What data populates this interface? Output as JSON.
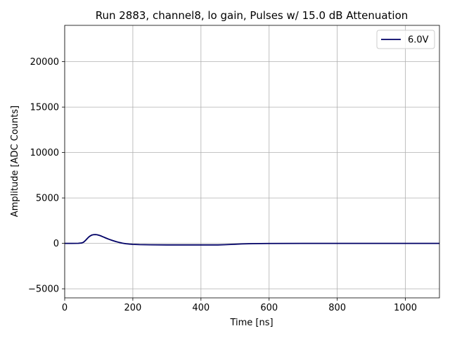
{
  "chart_data": {
    "type": "line",
    "title": "Run 2883, channel8, lo gain, Pulses w/ 15.0 dB Attenuation",
    "xlabel": "Time [ns]",
    "ylabel": "Amplitude [ADC Counts]",
    "xlim": [
      0,
      1100
    ],
    "ylim": [
      -6000,
      24000
    ],
    "xticks": [
      0,
      200,
      400,
      600,
      800,
      1000
    ],
    "xtick_labels": [
      "0",
      "200",
      "400",
      "600",
      "800",
      "1000"
    ],
    "yticks": [
      -5000,
      0,
      5000,
      10000,
      15000,
      20000
    ],
    "ytick_labels": [
      "−5000",
      "0",
      "5000",
      "10000",
      "15000",
      "20000"
    ],
    "grid": true,
    "legend_position": "top-right",
    "series": [
      {
        "name": "6.0V",
        "color": "#000066",
        "x": [
          0,
          20,
          40,
          50,
          55,
          60,
          65,
          70,
          75,
          80,
          85,
          90,
          95,
          100,
          105,
          110,
          115,
          120,
          130,
          140,
          150,
          160,
          170,
          180,
          190,
          200,
          220,
          250,
          300,
          350,
          400,
          450,
          470,
          500,
          520,
          550,
          600,
          700,
          800,
          900,
          1000,
          1100
        ],
        "y": [
          0,
          0,
          10,
          40,
          120,
          280,
          480,
          680,
          820,
          920,
          960,
          970,
          950,
          900,
          840,
          760,
          680,
          600,
          450,
          320,
          200,
          100,
          20,
          -40,
          -80,
          -110,
          -140,
          -160,
          -170,
          -170,
          -170,
          -170,
          -150,
          -100,
          -60,
          -30,
          -10,
          0,
          0,
          0,
          0,
          0
        ]
      }
    ]
  }
}
